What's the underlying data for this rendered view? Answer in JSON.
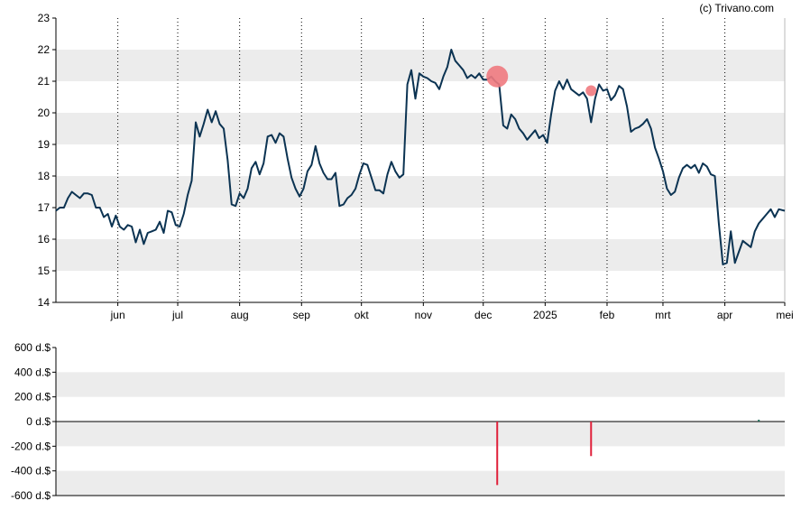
{
  "watermark": "(c) Trivano.com",
  "colors": {
    "line": "#0b3352",
    "band": "#ececec",
    "marker": "#f07a80",
    "neg_bar": "#e0203a",
    "pos_bar": "#1f6e5a",
    "axis": "#000000",
    "vgrid": "#000000"
  },
  "chart_data": [
    {
      "type": "line",
      "name": "price",
      "ylim": [
        14,
        23
      ],
      "y_ticks": [
        "14",
        "15",
        "16",
        "17",
        "18",
        "19",
        "20",
        "21",
        "22",
        "23"
      ],
      "x_ticks": [
        "jun",
        "jul",
        "aug",
        "sep",
        "okt",
        "nov",
        "dec",
        "2025",
        "feb",
        "mrt",
        "apr",
        "mei"
      ],
      "x_tick_days": [
        31,
        61,
        92,
        123,
        153,
        184,
        214,
        245,
        276,
        304,
        335,
        365
      ],
      "x_range_days": [
        0,
        365
      ],
      "grid": {
        "horizontal_bands": true,
        "vertical_dotted": true
      },
      "series_values": [
        [
          0,
          16.9
        ],
        [
          2,
          17.0
        ],
        [
          4,
          17.0
        ],
        [
          6,
          17.3
        ],
        [
          8,
          17.5
        ],
        [
          10,
          17.4
        ],
        [
          12,
          17.3
        ],
        [
          14,
          17.45
        ],
        [
          16,
          17.45
        ],
        [
          18,
          17.4
        ],
        [
          20,
          17.0
        ],
        [
          22,
          17.0
        ],
        [
          24,
          16.7
        ],
        [
          26,
          16.8
        ],
        [
          28,
          16.4
        ],
        [
          30,
          16.75
        ],
        [
          32,
          16.4
        ],
        [
          34,
          16.3
        ],
        [
          36,
          16.45
        ],
        [
          38,
          16.4
        ],
        [
          40,
          15.9
        ],
        [
          42,
          16.3
        ],
        [
          44,
          15.85
        ],
        [
          46,
          16.2
        ],
        [
          48,
          16.25
        ],
        [
          50,
          16.3
        ],
        [
          52,
          16.55
        ],
        [
          54,
          16.2
        ],
        [
          56,
          16.9
        ],
        [
          58,
          16.85
        ],
        [
          60,
          16.45
        ],
        [
          62,
          16.4
        ],
        [
          64,
          16.8
        ],
        [
          66,
          17.4
        ],
        [
          68,
          17.85
        ],
        [
          70,
          19.7
        ],
        [
          72,
          19.25
        ],
        [
          74,
          19.65
        ],
        [
          76,
          20.1
        ],
        [
          78,
          19.7
        ],
        [
          80,
          20.05
        ],
        [
          82,
          19.65
        ],
        [
          84,
          19.5
        ],
        [
          86,
          18.5
        ],
        [
          88,
          17.1
        ],
        [
          90,
          17.05
        ],
        [
          92,
          17.45
        ],
        [
          94,
          17.3
        ],
        [
          96,
          17.6
        ],
        [
          98,
          18.25
        ],
        [
          100,
          18.45
        ],
        [
          102,
          18.05
        ],
        [
          104,
          18.4
        ],
        [
          106,
          19.25
        ],
        [
          108,
          19.3
        ],
        [
          110,
          19.05
        ],
        [
          112,
          19.35
        ],
        [
          114,
          19.25
        ],
        [
          116,
          18.55
        ],
        [
          118,
          17.95
        ],
        [
          120,
          17.6
        ],
        [
          122,
          17.35
        ],
        [
          124,
          17.6
        ],
        [
          126,
          18.15
        ],
        [
          128,
          18.35
        ],
        [
          130,
          18.95
        ],
        [
          132,
          18.4
        ],
        [
          134,
          18.1
        ],
        [
          136,
          17.9
        ],
        [
          138,
          17.9
        ],
        [
          140,
          18.1
        ],
        [
          142,
          17.05
        ],
        [
          144,
          17.1
        ],
        [
          146,
          17.3
        ],
        [
          148,
          17.4
        ],
        [
          150,
          17.6
        ],
        [
          152,
          18.05
        ],
        [
          154,
          18.4
        ],
        [
          156,
          18.35
        ],
        [
          158,
          17.95
        ],
        [
          160,
          17.55
        ],
        [
          162,
          17.55
        ],
        [
          164,
          17.45
        ],
        [
          166,
          18.05
        ],
        [
          168,
          18.45
        ],
        [
          170,
          18.15
        ],
        [
          172,
          17.95
        ],
        [
          174,
          18.05
        ],
        [
          176,
          20.9
        ],
        [
          178,
          21.35
        ],
        [
          180,
          20.45
        ],
        [
          182,
          21.25
        ],
        [
          184,
          21.15
        ],
        [
          186,
          21.1
        ],
        [
          188,
          21.0
        ],
        [
          190,
          20.95
        ],
        [
          192,
          20.75
        ],
        [
          194,
          21.15
        ],
        [
          196,
          21.45
        ],
        [
          198,
          22.0
        ],
        [
          200,
          21.65
        ],
        [
          202,
          21.5
        ],
        [
          204,
          21.35
        ],
        [
          206,
          21.1
        ],
        [
          208,
          21.2
        ],
        [
          210,
          21.1
        ],
        [
          212,
          21.25
        ],
        [
          214,
          21.05
        ],
        [
          216,
          21.05
        ],
        [
          218,
          21.15
        ],
        [
          220,
          21.0
        ],
        [
          222,
          20.9
        ],
        [
          224,
          19.6
        ],
        [
          226,
          19.5
        ],
        [
          228,
          19.95
        ],
        [
          230,
          19.8
        ],
        [
          232,
          19.5
        ],
        [
          234,
          19.35
        ],
        [
          236,
          19.15
        ],
        [
          238,
          19.3
        ],
        [
          240,
          19.45
        ],
        [
          242,
          19.2
        ],
        [
          244,
          19.3
        ],
        [
          246,
          19.05
        ],
        [
          248,
          19.95
        ],
        [
          250,
          20.7
        ],
        [
          252,
          21.0
        ],
        [
          254,
          20.75
        ],
        [
          256,
          21.05
        ],
        [
          258,
          20.75
        ],
        [
          260,
          20.65
        ],
        [
          262,
          20.55
        ],
        [
          264,
          20.65
        ],
        [
          266,
          20.45
        ],
        [
          268,
          19.7
        ],
        [
          270,
          20.45
        ],
        [
          272,
          20.9
        ],
        [
          274,
          20.7
        ],
        [
          276,
          20.75
        ],
        [
          278,
          20.4
        ],
        [
          280,
          20.55
        ],
        [
          282,
          20.85
        ],
        [
          284,
          20.75
        ],
        [
          286,
          20.2
        ],
        [
          288,
          19.4
        ],
        [
          290,
          19.5
        ],
        [
          292,
          19.55
        ],
        [
          294,
          19.65
        ],
        [
          296,
          19.8
        ],
        [
          298,
          19.5
        ],
        [
          300,
          18.9
        ],
        [
          302,
          18.55
        ],
        [
          304,
          18.15
        ],
        [
          306,
          17.6
        ],
        [
          308,
          17.4
        ],
        [
          310,
          17.5
        ],
        [
          312,
          17.95
        ],
        [
          314,
          18.25
        ],
        [
          316,
          18.35
        ],
        [
          318,
          18.25
        ],
        [
          320,
          18.35
        ],
        [
          322,
          18.1
        ],
        [
          324,
          18.4
        ],
        [
          326,
          18.3
        ],
        [
          328,
          18.05
        ],
        [
          330,
          18.0
        ],
        [
          332,
          16.5
        ],
        [
          334,
          15.2
        ],
        [
          336,
          15.25
        ],
        [
          338,
          16.25
        ],
        [
          340,
          15.25
        ],
        [
          342,
          15.6
        ],
        [
          344,
          15.95
        ],
        [
          346,
          15.85
        ],
        [
          348,
          15.75
        ],
        [
          350,
          16.25
        ],
        [
          352,
          16.5
        ],
        [
          354,
          16.65
        ],
        [
          356,
          16.8
        ],
        [
          358,
          16.95
        ],
        [
          360,
          16.7
        ],
        [
          362,
          16.95
        ],
        [
          365,
          16.9
        ]
      ],
      "markers": [
        {
          "day": 221,
          "value": 21.15,
          "size": "large"
        },
        {
          "day": 268,
          "value": 20.7,
          "size": "small"
        }
      ]
    },
    {
      "type": "bar",
      "name": "volume",
      "ylim": [
        -600,
        600
      ],
      "y_ticks": [
        "-600 d.$",
        "-400 d.$",
        "-200 d.$",
        "0 d.$",
        "200 d.$",
        "400 d.$",
        "600 d.$"
      ],
      "bars": [
        {
          "day": 221,
          "value": -515
        },
        {
          "day": 268,
          "value": -280
        },
        {
          "day": 352,
          "value": 15
        }
      ]
    }
  ]
}
